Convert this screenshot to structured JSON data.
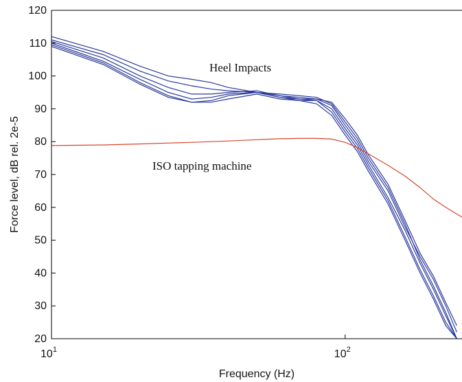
{
  "chart_data": {
    "type": "line",
    "xlabel": "Frequency (Hz)",
    "ylabel": "Force level, dB rel. 2e-5",
    "x_scale": "log",
    "xlim": [
      10,
      250
    ],
    "ylim": [
      20,
      120
    ],
    "x_ticks": [
      {
        "value": 10,
        "base": "10",
        "exp": "1"
      },
      {
        "value": 100,
        "base": "10",
        "exp": "2"
      }
    ],
    "y_ticks": [
      20,
      30,
      40,
      50,
      60,
      70,
      80,
      90,
      100,
      110,
      120
    ],
    "grid": false,
    "annotations": [
      {
        "text": "Heel Impacts",
        "x": 45,
        "y": 100
      },
      {
        "text": "ISO tapping machine",
        "x": 40,
        "y": 74
      }
    ],
    "colors": {
      "heel": "#2b3a9c",
      "iso": "#d8442a",
      "axis": "#000000"
    },
    "series": [
      {
        "group": "heel",
        "x": [
          10,
          15,
          20,
          25,
          30,
          35,
          40,
          50,
          60,
          70,
          80,
          90,
          100,
          110,
          120,
          140,
          160,
          180,
          200,
          220,
          240
        ],
        "y": [
          112,
          107.5,
          103,
          100,
          99,
          98,
          96.5,
          95,
          94.5,
          94,
          93.5,
          91.5,
          86,
          81,
          75,
          66,
          55,
          44,
          36,
          28,
          20
        ]
      },
      {
        "group": "heel",
        "x": [
          10,
          15,
          20,
          25,
          30,
          35,
          40,
          50,
          60,
          70,
          80,
          90,
          100,
          110,
          120,
          140,
          160,
          180,
          200,
          220,
          240
        ],
        "y": [
          111,
          106.5,
          101.5,
          98.5,
          97,
          96,
          95.5,
          95,
          94,
          93.5,
          93,
          91,
          85,
          80,
          74,
          65,
          54,
          45,
          38,
          30,
          22
        ]
      },
      {
        "group": "heel",
        "x": [
          10,
          15,
          20,
          25,
          30,
          35,
          40,
          50,
          60,
          70,
          80,
          90,
          100,
          110,
          120,
          140,
          160,
          180,
          200,
          220,
          240
        ],
        "y": [
          110.5,
          105.5,
          100,
          96.5,
          94.5,
          94.5,
          95,
          95.5,
          94,
          93,
          93,
          92,
          87,
          82,
          76,
          67,
          56,
          46,
          39,
          31,
          24
        ]
      },
      {
        "group": "heel",
        "x": [
          10,
          15,
          20,
          25,
          30,
          35,
          40,
          50,
          60,
          70,
          80,
          90,
          100,
          110,
          120,
          140,
          160,
          180,
          200,
          220,
          240
        ],
        "y": [
          110,
          104.5,
          99,
          95,
          93,
          93.5,
          94.5,
          95,
          93.5,
          92.5,
          92.5,
          90,
          84,
          79,
          73,
          63,
          53,
          43,
          35,
          27,
          20
        ]
      },
      {
        "group": "heel",
        "x": [
          10,
          15,
          20,
          25,
          30,
          35,
          40,
          50,
          60,
          70,
          80,
          90,
          100,
          110,
          120,
          140,
          160,
          180,
          200,
          220,
          240
        ],
        "y": [
          109.5,
          104,
          98,
          94,
          92,
          92.5,
          94,
          95,
          93.5,
          93,
          92.5,
          89,
          83,
          78,
          72,
          62,
          51,
          41,
          33,
          25,
          20
        ]
      },
      {
        "group": "heel",
        "x": [
          10,
          15,
          20,
          25,
          30,
          35,
          40,
          50,
          60,
          70,
          80,
          90,
          100,
          110,
          120,
          140,
          160,
          180,
          200,
          220,
          240
        ],
        "y": [
          109,
          103.5,
          97.5,
          93.5,
          92,
          92,
          93,
          94.5,
          93,
          92.5,
          91.5,
          88,
          82,
          77,
          71,
          61,
          50,
          40,
          32,
          24,
          20
        ]
      },
      {
        "group": "iso",
        "x": [
          10,
          15,
          20,
          30,
          40,
          50,
          60,
          70,
          80,
          90,
          100,
          110,
          120,
          140,
          160,
          180,
          200,
          220,
          250
        ],
        "y": [
          78.8,
          79,
          79.3,
          79.8,
          80.2,
          80.6,
          80.9,
          81,
          81,
          80.8,
          79.8,
          78.2,
          76.3,
          72.8,
          69.5,
          66,
          62.5,
          60,
          57
        ]
      }
    ]
  }
}
